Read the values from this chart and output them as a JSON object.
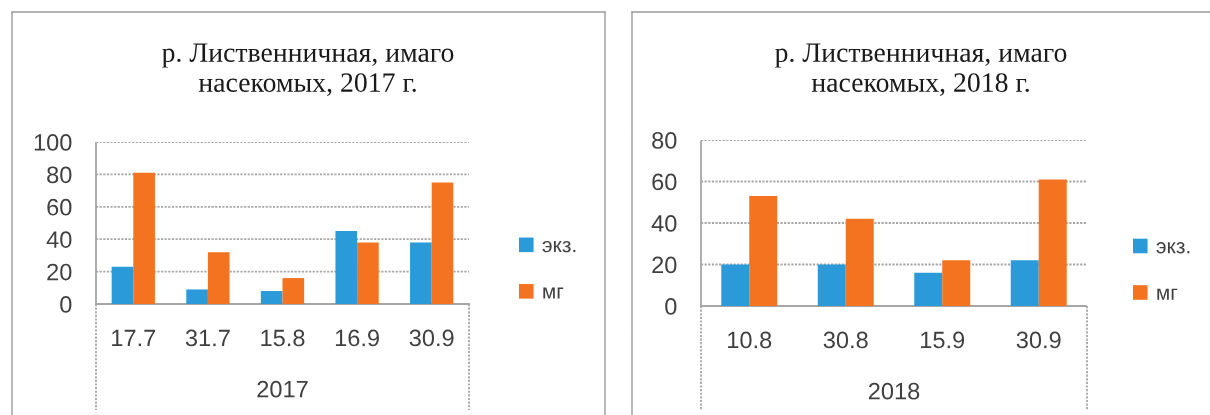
{
  "chart_data": [
    {
      "type": "bar",
      "title": "р. Лиственничная, имаго\nнасекомых, 2017 г.",
      "categories": [
        "17.7",
        "31.7",
        "15.8",
        "16.9",
        "30.9"
      ],
      "xlabel": "2017",
      "series": [
        {
          "name": "экз.",
          "color": "#2b9ad8",
          "values": [
            23,
            9,
            8,
            45,
            38
          ]
        },
        {
          "name": "мг",
          "color": "#f47320",
          "values": [
            81,
            32,
            16,
            38,
            75
          ]
        }
      ],
      "ylim": [
        0,
        100
      ],
      "yticks": [
        0,
        20,
        40,
        60,
        80,
        100
      ],
      "grid": "y",
      "legend": "right"
    },
    {
      "type": "bar",
      "title": "р. Лиственничная, имаго\nнасекомых, 2018 г.",
      "categories": [
        "10.8",
        "30.8",
        "15.9",
        "30.9"
      ],
      "xlabel": "2018",
      "series": [
        {
          "name": "экз.",
          "color": "#2b9ad8",
          "values": [
            20,
            20,
            16,
            22
          ]
        },
        {
          "name": "мг",
          "color": "#f47320",
          "values": [
            53,
            42,
            22,
            61
          ]
        }
      ],
      "ylim": [
        0,
        80
      ],
      "yticks": [
        0,
        20,
        40,
        60,
        80
      ],
      "grid": "y",
      "legend": "right"
    }
  ]
}
